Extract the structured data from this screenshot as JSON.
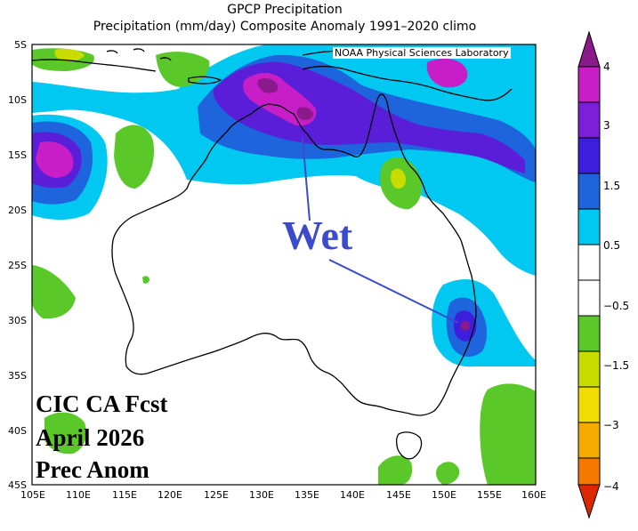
{
  "header": {
    "title": "GPCP Precipitation",
    "subtitle": "Precipitation (mm/day) Composite Anomaly 1991–2020 climo"
  },
  "credit": "NOAA Physical Sciences Laboratory",
  "overlay": {
    "line1": "CIC CA Fcst",
    "line2": "April 2026",
    "line3": "Prec Anom",
    "annotation": "Wet"
  },
  "axes": {
    "lat_labels": [
      "5S",
      "10S",
      "15S",
      "20S",
      "25S",
      "30S",
      "35S",
      "40S",
      "45S"
    ],
    "lon_labels": [
      "105E",
      "110E",
      "115E",
      "120E",
      "125E",
      "130E",
      "135E",
      "140E",
      "145E",
      "150E",
      "155E",
      "160E"
    ],
    "lat_range": [
      -45,
      -5
    ],
    "lon_range": [
      105,
      160
    ]
  },
  "colorbar": {
    "labels": [
      "4",
      "3",
      "1.5",
      "0.5",
      "−0.5",
      "−1.5",
      "−3",
      "−4"
    ],
    "colors": {
      "purple_dark": "#8a1a8a",
      "magenta": "#c81ec8",
      "violet": "#7b1fd9",
      "blue_dark": "#3c1edc",
      "blue": "#1e64dc",
      "sky": "#00c8f0",
      "white": "#ffffff",
      "green": "#5ac828",
      "yellow_green": "#c8dc00",
      "yellow": "#f0dc00",
      "orange_light": "#f5aa00",
      "orange": "#f57800",
      "red": "#dc2800"
    }
  }
}
